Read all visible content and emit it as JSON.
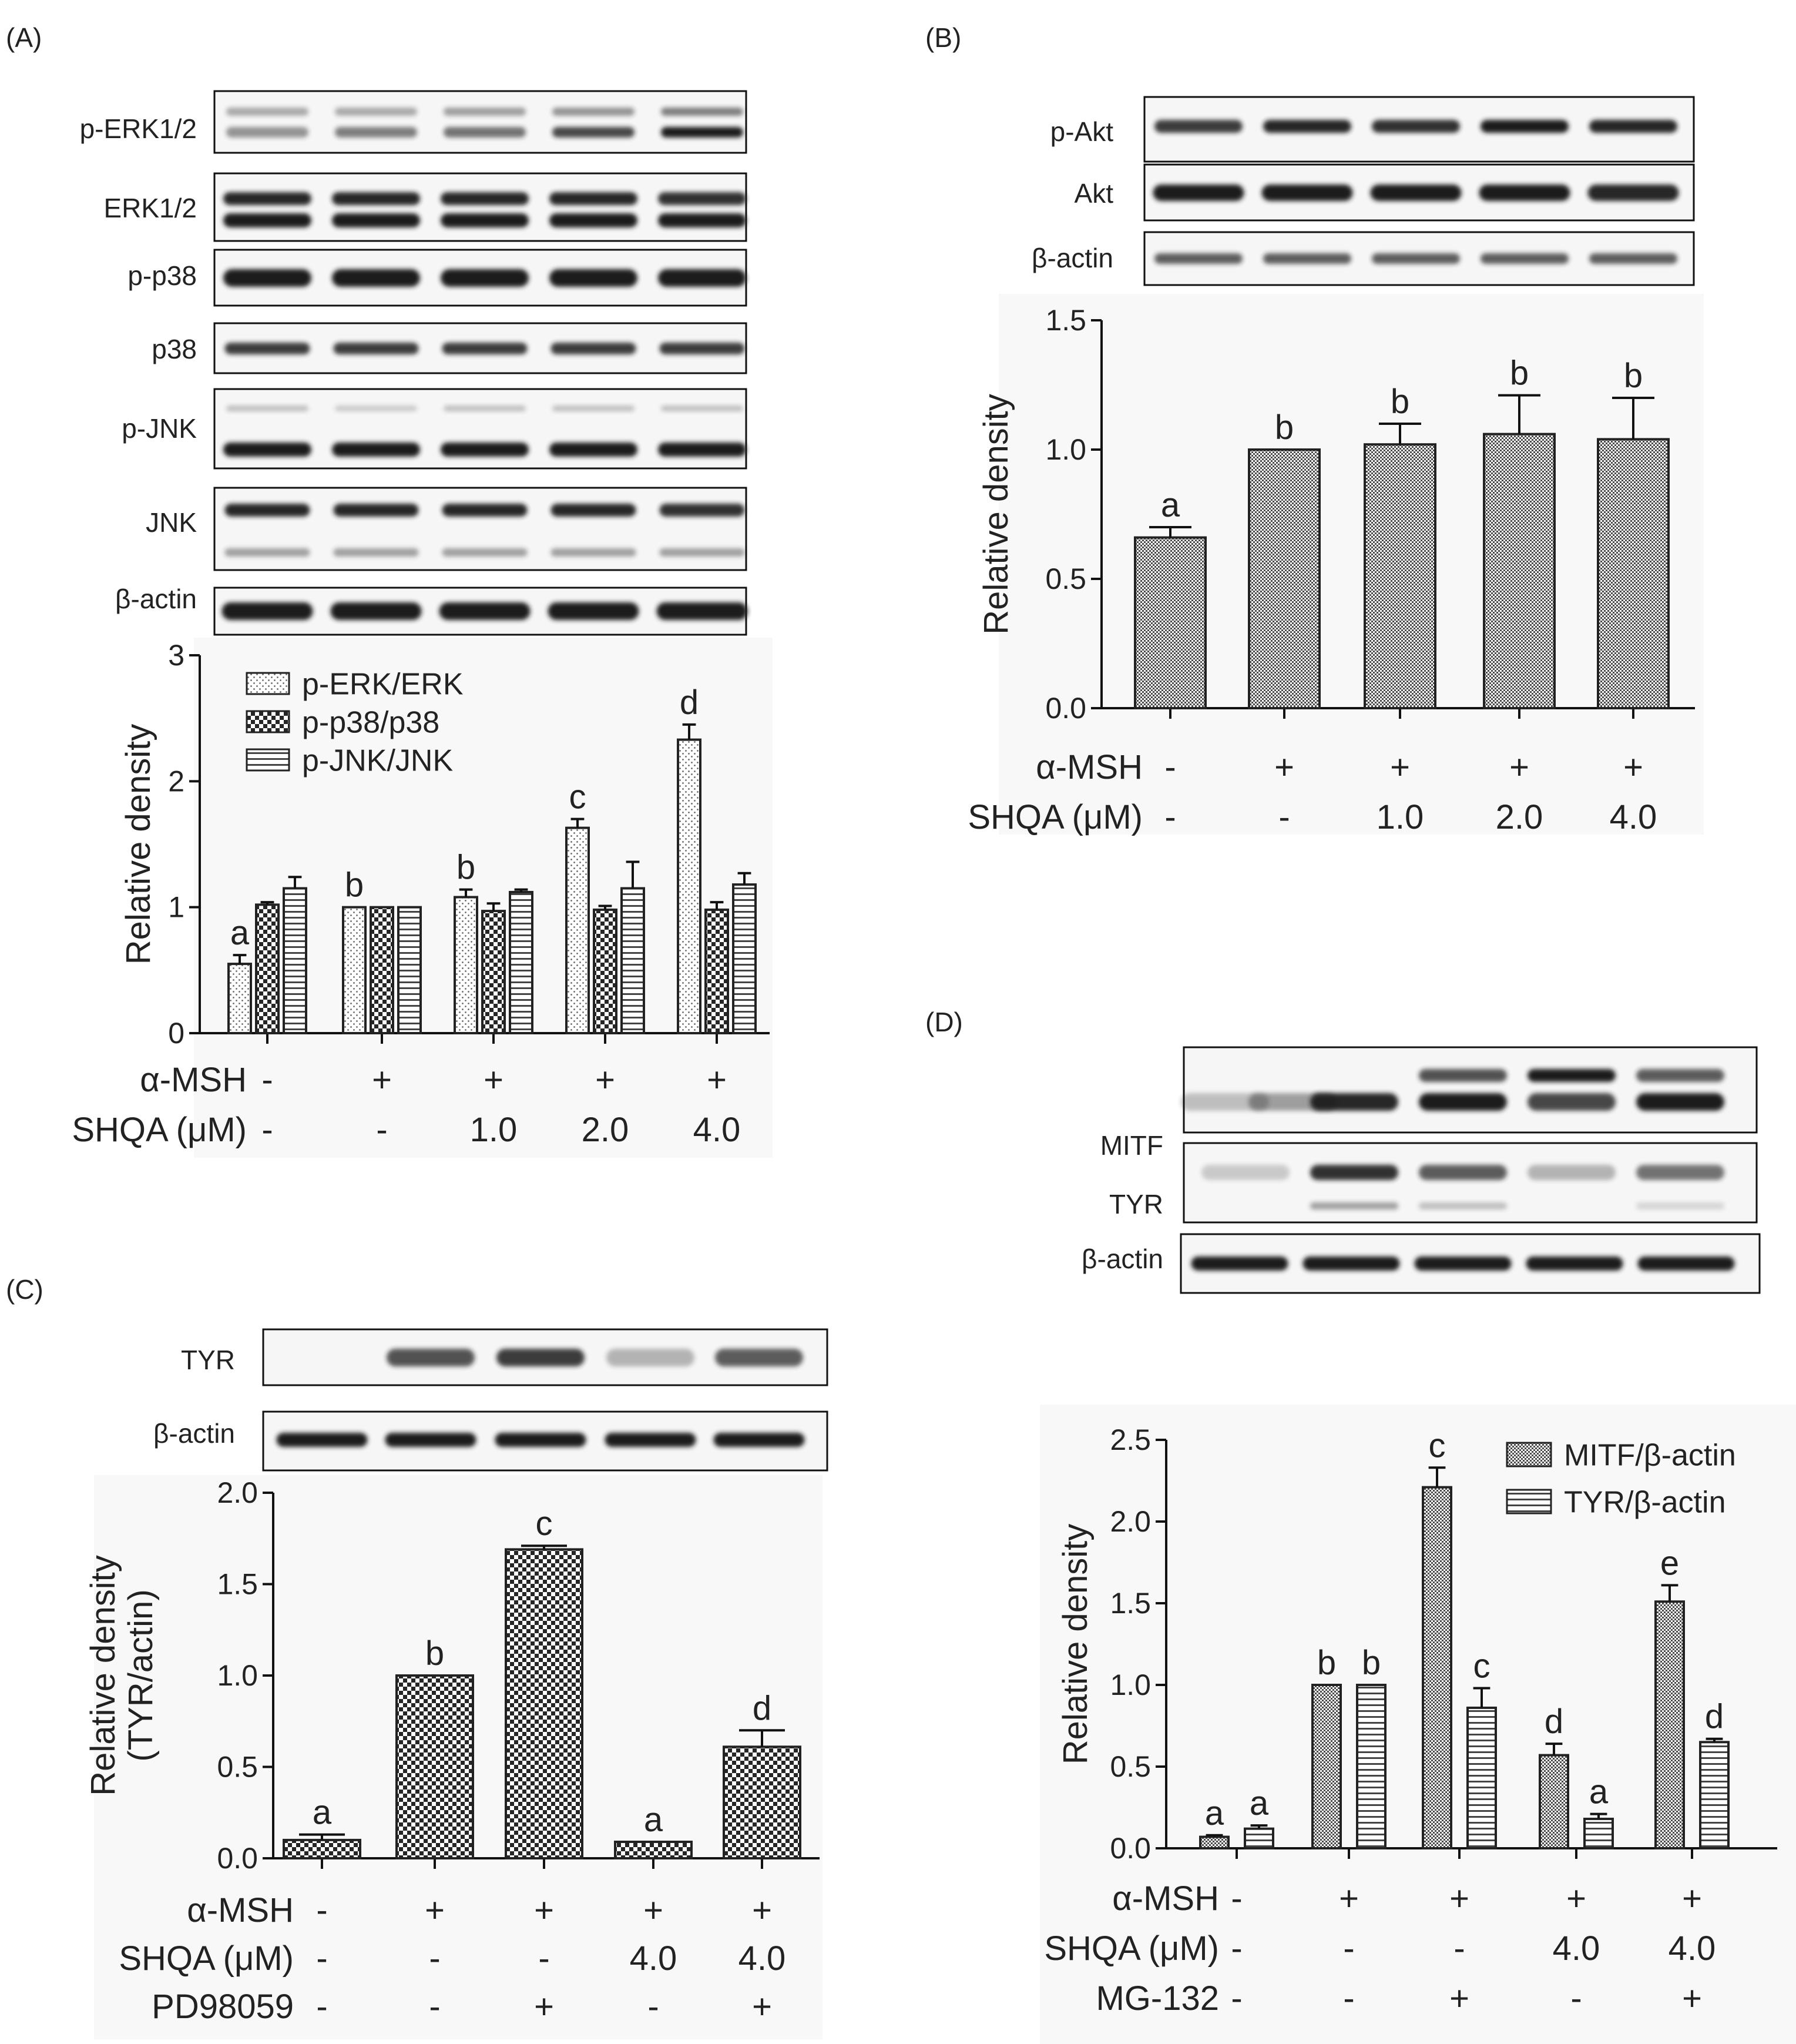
{
  "figure": {
    "panel_labels": [
      "(A)",
      "(B)",
      "(C)",
      "(D)"
    ],
    "band_color": "#1e1e1e",
    "bar_edge_color": "#222222"
  },
  "chart_data": [
    {
      "panel": "(A)",
      "type": "bar",
      "blot_labels": [
        "p-ERK1/2",
        "ERK1/2",
        "p-p38",
        "p38",
        "p-JNK",
        "JNK",
        "β-actin"
      ],
      "ylabel": "Relative density",
      "ylim": [
        0,
        3
      ],
      "yticks": [
        "0",
        "1",
        "2",
        "3"
      ],
      "legend_position": "top-left",
      "series": [
        {
          "name": "p-ERK/ERK",
          "values": [
            0.55,
            1.0,
            1.08,
            1.63,
            2.33
          ],
          "errors": [
            0.07,
            0.0,
            0.06,
            0.07,
            0.12
          ],
          "pattern": "dots",
          "letters": [
            "a",
            "b",
            "b",
            "c",
            "d"
          ]
        },
        {
          "name": "p-p38/p38",
          "values": [
            1.02,
            1.0,
            0.97,
            0.98,
            0.98
          ],
          "errors": [
            0.02,
            0.0,
            0.06,
            0.03,
            0.06
          ],
          "pattern": "check",
          "letters": [
            "",
            "",
            "",
            "",
            ""
          ]
        },
        {
          "name": "p-JNK/JNK",
          "values": [
            1.15,
            1.0,
            1.12,
            1.15,
            1.18
          ],
          "errors": [
            0.09,
            0.0,
            0.02,
            0.21,
            0.09
          ],
          "pattern": "hlines",
          "letters": [
            "",
            "",
            "",
            "",
            ""
          ]
        }
      ],
      "conditions": [
        {
          "label": "α-MSH",
          "values": [
            "-",
            "+",
            "+",
            "+",
            "+"
          ]
        },
        {
          "label": "SHQA (μM)",
          "values": [
            "-",
            "-",
            "1.0",
            "2.0",
            "4.0"
          ]
        }
      ]
    },
    {
      "panel": "(B)",
      "type": "bar",
      "blot_labels": [
        "p-Akt",
        "Akt",
        "β-actin"
      ],
      "ylabel": "Relative density",
      "ylim": [
        0,
        1.5
      ],
      "yticks": [
        "0.0",
        "0.5",
        "1.0",
        "1.5"
      ],
      "series": [
        {
          "name": "p-Akt/Akt",
          "values": [
            0.66,
            1.0,
            1.02,
            1.06,
            1.04
          ],
          "errors": [
            0.04,
            0.0,
            0.08,
            0.15,
            0.16
          ],
          "pattern": "fine",
          "letters": [
            "a",
            "b",
            "b",
            "b",
            "b"
          ]
        }
      ],
      "conditions": [
        {
          "label": "α-MSH",
          "values": [
            "-",
            "+",
            "+",
            "+",
            "+"
          ]
        },
        {
          "label": "SHQA (μM)",
          "values": [
            "-",
            "-",
            "1.0",
            "2.0",
            "4.0"
          ]
        }
      ]
    },
    {
      "panel": "(C)",
      "type": "bar",
      "blot_labels": [
        "TYR",
        "β-actin"
      ],
      "ylabel": "Relative density",
      "ylabel2": "(TYR/actin)",
      "ylim": [
        0,
        2.0
      ],
      "yticks": [
        "0.0",
        "0.5",
        "1.0",
        "1.5",
        "2.0"
      ],
      "series": [
        {
          "name": "TYR/actin",
          "values": [
            0.1,
            1.0,
            1.69,
            0.09,
            0.61
          ],
          "errors": [
            0.03,
            0.0,
            0.02,
            0.0,
            0.09
          ],
          "pattern": "check",
          "letters": [
            "a",
            "b",
            "c",
            "a",
            "d"
          ]
        }
      ],
      "conditions": [
        {
          "label": "α-MSH",
          "values": [
            "-",
            "+",
            "+",
            "+",
            "+"
          ]
        },
        {
          "label": "SHQA (μM)",
          "values": [
            "-",
            "-",
            "-",
            "4.0",
            "4.0"
          ]
        },
        {
          "label": "PD98059",
          "values": [
            "-",
            "-",
            "+",
            "-",
            "+"
          ]
        }
      ]
    },
    {
      "panel": "(D)",
      "type": "bar",
      "blot_labels": [
        "MITF",
        "TYR",
        "β-actin"
      ],
      "ylabel": "Relative density",
      "ylim": [
        0,
        2.5
      ],
      "yticks": [
        "0.0",
        "0.5",
        "1.0",
        "1.5",
        "2.0",
        "2.5"
      ],
      "legend_position": "top-right",
      "series": [
        {
          "name": "MITF/β-actin",
          "values": [
            0.07,
            1.0,
            2.21,
            0.57,
            1.51
          ],
          "errors": [
            0.01,
            0.0,
            0.12,
            0.07,
            0.1
          ],
          "pattern": "fine",
          "letters": [
            "a",
            "b",
            "c",
            "d",
            "e"
          ]
        },
        {
          "name": "TYR/β-actin",
          "values": [
            0.12,
            1.0,
            0.86,
            0.18,
            0.65
          ],
          "errors": [
            0.02,
            0.0,
            0.12,
            0.03,
            0.02
          ],
          "pattern": "hlines",
          "letters": [
            "a",
            "b",
            "c",
            "a",
            "d"
          ]
        }
      ],
      "conditions": [
        {
          "label": "α-MSH",
          "values": [
            "-",
            "+",
            "+",
            "+",
            "+"
          ]
        },
        {
          "label": "SHQA (μM)",
          "values": [
            "-",
            "-",
            "-",
            "4.0",
            "4.0"
          ]
        },
        {
          "label": "MG-132",
          "values": [
            "-",
            "-",
            "+",
            "-",
            "+"
          ]
        }
      ]
    }
  ]
}
